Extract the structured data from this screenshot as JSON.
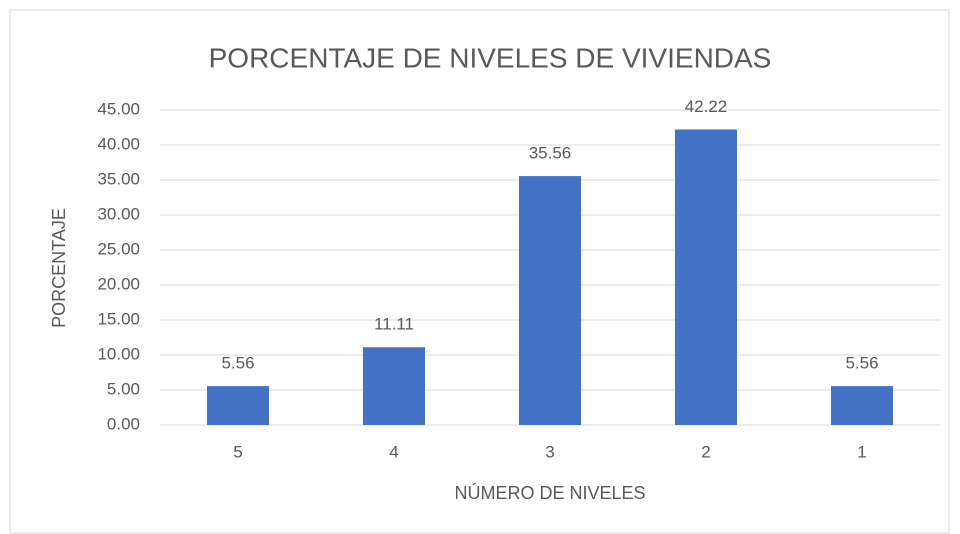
{
  "chart_data": {
    "type": "bar",
    "title": "PORCENTAJE DE NIVELES DE VIVIENDAS",
    "x_label": "NÚMERO DE NIVELES",
    "y_label": "PORCENTAJE",
    "categories": [
      "5",
      "4",
      "3",
      "2",
      "1"
    ],
    "values": [
      5.56,
      11.11,
      35.56,
      42.22,
      5.56
    ],
    "color": "#4472c4",
    "ylim": [
      0,
      45
    ],
    "yticks": [
      {
        "value": 0,
        "label": "0.00"
      },
      {
        "value": 5,
        "label": "5.00"
      },
      {
        "value": 10,
        "label": "10.00"
      },
      {
        "value": 15,
        "label": "15.00"
      },
      {
        "value": 20,
        "label": "20.00"
      },
      {
        "value": 25,
        "label": "25.00"
      },
      {
        "value": 30,
        "label": "30.00"
      },
      {
        "value": 35,
        "label": "35.00"
      },
      {
        "value": 40,
        "label": "40.00"
      },
      {
        "value": 45,
        "label": "45.00"
      }
    ],
    "grid": true
  }
}
